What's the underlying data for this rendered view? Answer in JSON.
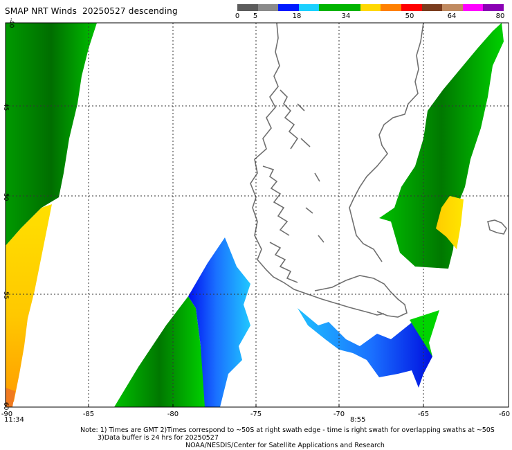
{
  "header": {
    "title": "SMAP NRT Winds  20250527 descending"
  },
  "colorbar": {
    "labels": [
      "0",
      "5",
      "18",
      "34",
      "50",
      "64",
      "80"
    ],
    "colors": {
      "calm": "#5c5c5c",
      "light": "#8a8a8a",
      "blue_dark": "#0019ff",
      "blue_light": "#1ad0ff",
      "green": "#00b400",
      "green_dark": "#007400",
      "yellow": "#ffd800",
      "orange": "#ff8000",
      "red": "#ff0000",
      "brown": "#7a3c1e",
      "tan": "#c08a60",
      "magenta": "#ff00ff",
      "purple": "#8a00b4"
    }
  },
  "axes": {
    "lon_ticks": [
      "-90",
      "-85",
      "-80",
      "-75",
      "-70",
      "-65",
      "-60"
    ],
    "lat_ticks": [
      "-40",
      "-45",
      "-50",
      "-55",
      "-60"
    ]
  },
  "time_labels": {
    "left": "11:34",
    "center": "8:55"
  },
  "notes": {
    "line1": "Note: 1) Times are GMT 2)Times correspond to ~50S at right swath edge - time is right swath for overlapping swaths at ~50S",
    "line2": "3)Data buffer is 24 hrs for 20250527",
    "line3": "NOAA/NESDIS/Center for Satellite Applications and Research"
  }
}
